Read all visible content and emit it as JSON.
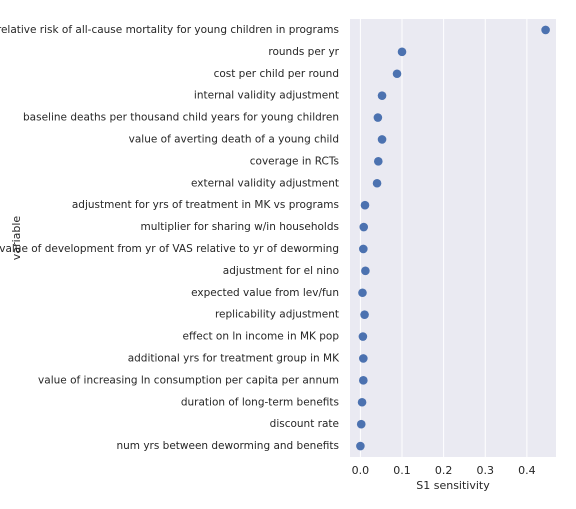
{
  "chart_data": {
    "type": "scatter",
    "orientation": "horizontal",
    "xlabel": "S1 sensitivity",
    "ylabel": "variable",
    "xlim": [
      -0.025,
      0.47
    ],
    "xticks": [
      0.0,
      0.1,
      0.2,
      0.3,
      0.4
    ],
    "xtick_labels": [
      "0.0",
      "0.1",
      "0.2",
      "0.3",
      "0.4"
    ],
    "grid": "vertical",
    "colors": {
      "background": "#eaeaf2",
      "grid": "#ffffff",
      "marker": "#4c72b0"
    },
    "categories": [
      "relative risk of all-cause mortality for young children in programs",
      "rounds per yr",
      "cost per child per round",
      "internal validity adjustment",
      "baseline deaths per thousand child years for young children",
      "value of averting death of a young child",
      "coverage in RCTs",
      "external validity adjustment",
      "adjustment for yrs of treatment in MK vs programs",
      "multiplier for sharing w/in households",
      "value of development from yr of VAS relative to yr of deworming",
      "adjustment for el nino",
      "expected value from lev/fun",
      "replicability adjustment",
      "effect on ln income in MK pop",
      "additional yrs for treatment group in MK",
      "value of increasing ln consumption per capita per annum",
      "duration of long-term benefits",
      "discount rate",
      "num yrs between deworming and benefits"
    ],
    "values": [
      0.445,
      0.1,
      0.088,
      0.052,
      0.042,
      0.052,
      0.043,
      0.04,
      0.011,
      0.008,
      0.007,
      0.012,
      0.005,
      0.01,
      0.006,
      0.007,
      0.007,
      0.004,
      0.002,
      0.0
    ]
  }
}
